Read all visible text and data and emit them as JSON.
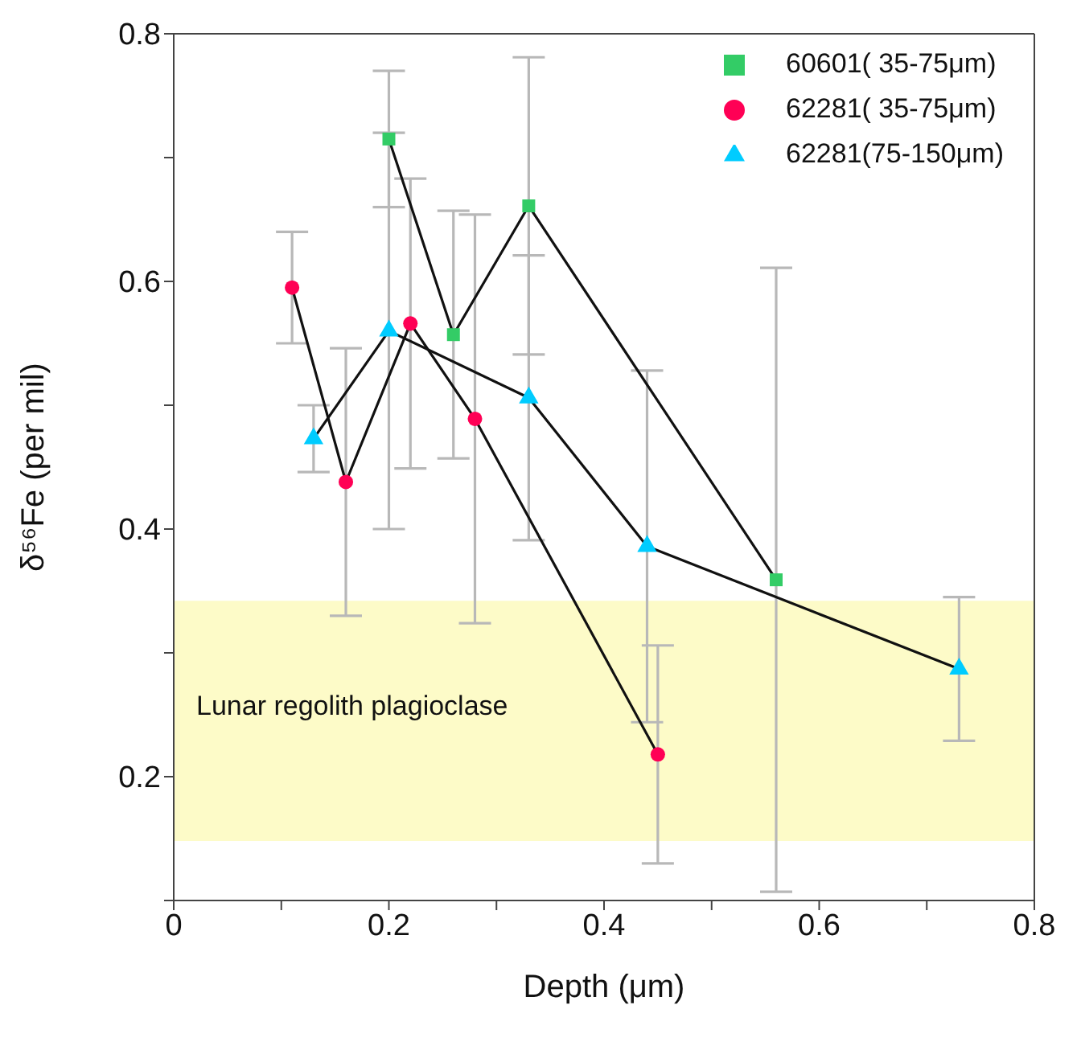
{
  "chart_data": {
    "type": "line",
    "xlabel": "Depth (μm)",
    "ylabel": "δ⁵⁶Fe (per mil)",
    "xlim": [
      0,
      0.8
    ],
    "xticks": [
      0,
      {
        "value": 0.1,
        "label": null
      },
      0.2,
      {
        "value": 0.3,
        "label": null
      },
      0.4,
      {
        "value": 0.5,
        "label": null
      },
      0.6,
      {
        "value": 0.7,
        "label": null
      },
      0.8
    ],
    "ylim": [
      0.1,
      0.8
    ],
    "yticks": [
      {
        "value": 0.1,
        "label": null
      },
      0.2,
      {
        "value": 0.3,
        "label": null
      },
      0.4,
      {
        "value": 0.5,
        "label": null
      },
      0.6,
      {
        "value": 0.7,
        "label": null
      },
      0.8
    ],
    "grid": false,
    "legend": "top right",
    "line_style": "solid",
    "bands": [
      {
        "axis": "y",
        "from": 0.148,
        "to": 0.342,
        "label": "Lunar regolith plagioclase",
        "color": "#fdfbc8"
      }
    ],
    "series": [
      {
        "name": "60601( 35-75μm)",
        "color": "#33cc66",
        "marker": "square",
        "x": [
          0.2,
          0.26,
          0.33,
          0.56
        ],
        "values": [
          0.715,
          0.557,
          0.661,
          0.359
        ],
        "errors": [
          0.055,
          0.1,
          0.12,
          0.252
        ]
      },
      {
        "name": "62281( 35-75μm)",
        "color": "#ff0055",
        "marker": "circle",
        "x": [
          0.11,
          0.16,
          0.22,
          0.28,
          0.45
        ],
        "values": [
          0.595,
          0.438,
          0.566,
          0.489,
          0.218
        ],
        "errors": [
          0.045,
          0.108,
          0.117,
          0.165,
          0.088
        ]
      },
      {
        "name": "62281(75-150μm)",
        "color": "#00ccff",
        "marker": "triangle",
        "x": [
          0.13,
          0.2,
          0.33,
          0.44,
          0.73
        ],
        "values": [
          0.473,
          0.56,
          0.506,
          0.386,
          0.287
        ],
        "errors": [
          0.027,
          0.16,
          0.115,
          0.142,
          0.058
        ]
      }
    ]
  }
}
